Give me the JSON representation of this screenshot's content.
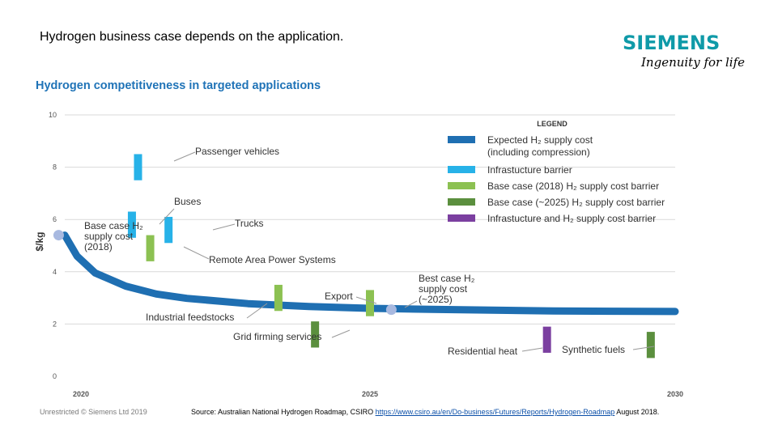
{
  "slide": {
    "title": "Hydrogen business case depends on the application.",
    "logo": "SIEMENS",
    "tagline": "Ingenuity for life",
    "footer_left": "Unrestricted © Siemens Ltd 2019",
    "footer_source_prefix": "Source: Australian National Hydrogen Roadmap, CSIRO ",
    "footer_source_link": "https://www.csiro.au/en/Do-business/Futures/Reports/Hydrogen-Roadmap",
    "footer_source_suffix": " August 2018."
  },
  "chart_data": {
    "type": "line",
    "title": "Hydrogen competitiveness in targeted applications",
    "ylabel": "$/kg",
    "xlabel": "",
    "xlim": [
      2020,
      2030
    ],
    "ylim": [
      0,
      10
    ],
    "x_ticks": [
      "2020",
      "2025",
      "2030"
    ],
    "y_ticks": [
      "0",
      "2",
      "4",
      "6",
      "8",
      "10"
    ],
    "grid": true,
    "legend_title": "LEGEND",
    "legend_position": "top-right",
    "colors": {
      "supply": "#1f6fb2",
      "infrastructure": "#27b2e8",
      "base2018": "#8cc152",
      "base2025": "#5b8f3e",
      "infra_supply": "#7b3fa0",
      "point": "#a8b9e0",
      "grid": "#d9d9d9"
    },
    "legend": [
      {
        "key": "supply",
        "label": "Expected H₂ supply cost",
        "label2": "(including compression)"
      },
      {
        "key": "infrastructure",
        "label": "Infrastucture barrier"
      },
      {
        "key": "base2018",
        "label": "Base case (2018) H₂ supply cost barrier"
      },
      {
        "key": "base2025",
        "label": "Base case (~2025) H₂ supply cost barrier"
      },
      {
        "key": "infra_supply",
        "label": "Infrastucture and H₂ supply cost barrier"
      }
    ],
    "series": [
      {
        "name": "Expected H2 supply cost (including compression)",
        "key": "supply",
        "x": [
          2020,
          2020.2,
          2020.5,
          2021,
          2021.5,
          2022,
          2023,
          2024,
          2025,
          2026,
          2027,
          2028,
          2029,
          2030
        ],
        "values": [
          5.4,
          4.6,
          3.95,
          3.45,
          3.15,
          2.98,
          2.78,
          2.67,
          2.6,
          2.56,
          2.53,
          2.5,
          2.49,
          2.48
        ]
      }
    ],
    "points": [
      {
        "x": 2019.9,
        "y": 5.4,
        "label_lines": [
          "Base case H₂",
          "supply cost",
          "(2018)"
        ]
      },
      {
        "x": 2025.35,
        "y": 2.55,
        "label_lines": [
          "Best case H₂",
          "supply cost",
          "(~2025)"
        ]
      }
    ],
    "barriers": [
      {
        "name": "Passenger vehicles",
        "key": "infrastructure",
        "x": 2021.2,
        "low": 7.5,
        "high": 8.5
      },
      {
        "name": "Buses",
        "key": "infrastructure",
        "x": 2021.1,
        "low": 5.3,
        "high": 6.3
      },
      {
        "name": "Trucks",
        "key": "infrastructure",
        "x": 2021.7,
        "low": 5.1,
        "high": 6.1
      },
      {
        "name": "Remote Area Power Systems",
        "key": "base2018",
        "x": 2021.4,
        "low": 4.4,
        "high": 5.4
      },
      {
        "name": "Industrial feedstocks",
        "key": "base2018",
        "x": 2023.5,
        "low": 2.5,
        "high": 3.5
      },
      {
        "name": "Export",
        "key": "base2018",
        "x": 2025.0,
        "low": 2.3,
        "high": 3.3
      },
      {
        "name": "Grid firming services",
        "key": "base2025",
        "x": 2024.1,
        "low": 1.1,
        "high": 2.1
      },
      {
        "name": "Residential heat",
        "key": "infra_supply",
        "x": 2027.9,
        "low": 0.9,
        "high": 1.9
      },
      {
        "name": "Synthetic fuels",
        "key": "base2025",
        "x": 2029.6,
        "low": 0.7,
        "high": 1.7
      }
    ]
  }
}
